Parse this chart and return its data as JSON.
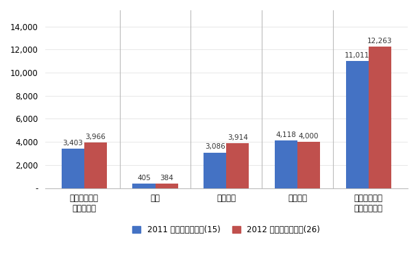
{
  "categories": [
    "検出とエスカ\nレーション",
    "通知",
    "事後対応",
    "機会損失",
    "１件当たりの\nコストの合計"
  ],
  "values_2011": [
    3403,
    405,
    3086,
    4118,
    11011
  ],
  "values_2012": [
    3966,
    384,
    3914,
    4000,
    12263
  ],
  "labels_2011": [
    "3,403",
    "405",
    "3,086",
    "4,118",
    "11,011"
  ],
  "labels_2012": [
    "3,966",
    "384",
    "3,914",
    "4,000",
    "12,263"
  ],
  "color_2011": "#4472C4",
  "color_2012": "#C0504D",
  "legend_2011": "2011 年の１件当たり(15)",
  "legend_2012": "2012 年の１件当たり(26)",
  "ylim": [
    0,
    15400
  ],
  "yticks": [
    0,
    2000,
    4000,
    6000,
    8000,
    10000,
    12000,
    14000
  ],
  "ytick_labels": [
    "-",
    "2,000",
    "4,000",
    "6,000",
    "8,000",
    "10,000",
    "12,000",
    "14,000"
  ],
  "background_color": "#ffffff",
  "bar_width": 0.32,
  "figsize": [
    6.1,
    4.0
  ],
  "dpi": 100
}
